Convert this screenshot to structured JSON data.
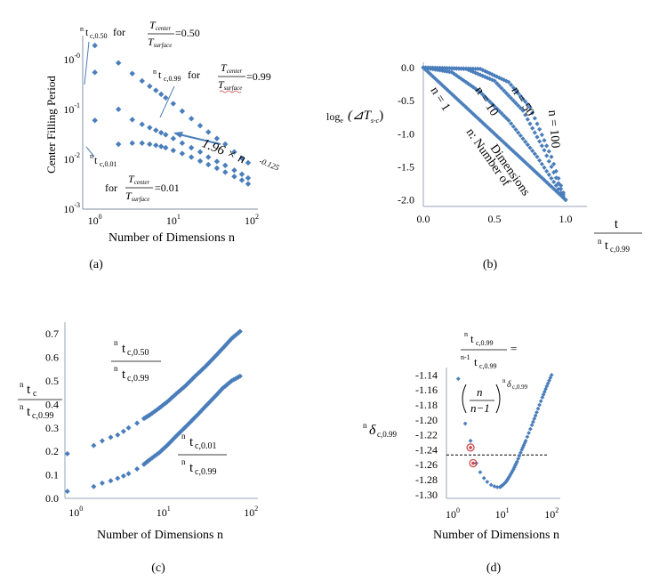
{
  "chart_data": [
    {
      "type": "scatter",
      "panel_label": "(a)",
      "xlabel": "Number of Dimensions n",
      "ylabel": "Center Filling Period",
      "xscale": "log",
      "yscale": "log",
      "xlim": [
        0.7,
        120
      ],
      "ylim": [
        0.001,
        3
      ],
      "x_ticks": [
        "10^0",
        "10^1",
        "10^2"
      ],
      "y_ticks": [
        "10^-3",
        "10^-2",
        "10^-1",
        "10^-0"
      ],
      "series": [
        {
          "x": [
            1,
            2,
            3,
            4,
            5,
            6,
            7,
            8,
            10,
            13,
            17,
            22,
            28,
            36,
            46,
            60,
            75,
            90
          ],
          "y": [
            1.9,
            0.85,
            0.52,
            0.37,
            0.29,
            0.24,
            0.2,
            0.17,
            0.13,
            0.092,
            0.065,
            0.047,
            0.035,
            0.026,
            0.02,
            0.014,
            0.0105,
            0.0085
          ]
        },
        {
          "x": [
            1,
            2,
            3,
            4,
            5,
            6,
            7,
            8,
            10,
            13,
            17,
            22,
            28,
            36,
            46,
            60,
            75,
            90
          ],
          "y": [
            0.55,
            0.1,
            0.062,
            0.05,
            0.043,
            0.038,
            0.034,
            0.031,
            0.026,
            0.021,
            0.017,
            0.014,
            0.011,
            0.009,
            0.0075,
            0.006,
            0.005,
            0.0042
          ]
        },
        {
          "x": [
            1,
            2,
            3,
            4,
            5,
            6,
            7,
            8,
            10,
            13,
            17,
            22,
            28,
            36,
            46,
            60,
            75,
            90
          ],
          "y": [
            0.06,
            0.02,
            0.021,
            0.021,
            0.02,
            0.019,
            0.018,
            0.017,
            0.015,
            0.013,
            0.011,
            0.0092,
            0.0078,
            0.0066,
            0.0055,
            0.0045,
            0.0038,
            0.0032
          ]
        }
      ],
      "annotations": {
        "top_label_prefix": "n",
        "top_label_sub": "c,0.50",
        "top_label_for": "for",
        "t_center": "T",
        "t_center_sub": "center",
        "t_surface": "T",
        "t_surface_sub": "surface",
        "val_050": "=0.50",
        "val_099": "=0.99",
        "val_001": "=0.01",
        "mid_label_sub": "c,0.99",
        "low_label_sub": "c,0.01",
        "formula_coef": "1.96 × n",
        "formula_exp": "-0.125"
      }
    },
    {
      "type": "line",
      "panel_label": "(b)",
      "xlabel": "t",
      "xlabel_denom_prefix": "n",
      "xlabel_denom": "t",
      "xlabel_denom_sub": "c,0.99",
      "ylabel": "log",
      "ylabel_sub": "e",
      "ylabel_arg": "(⊿T",
      "ylabel_arg_sub": "s-c",
      "ylabel_close": ")",
      "xlim": [
        0,
        1.15
      ],
      "ylim": [
        -2.1,
        0.08
      ],
      "x_ticks": [
        "0.0",
        "0.5",
        "1.0"
      ],
      "y_ticks": [
        "0.0",
        "-0.5",
        "-1.0",
        "-1.5",
        "-2.0"
      ],
      "series": [
        {
          "name": "n = 1",
          "x": [
            0,
            1
          ],
          "y": [
            0,
            -2.0
          ]
        },
        {
          "name": "n = 10",
          "x": [
            0,
            0.2,
            0.4,
            0.6,
            0.8,
            1.0
          ],
          "y": [
            0,
            -0.07,
            -0.37,
            -0.8,
            -1.35,
            -2.0
          ]
        },
        {
          "name": "n = 50",
          "x": [
            0,
            0.3,
            0.5,
            0.7,
            0.85,
            1.0
          ],
          "y": [
            0,
            -0.02,
            -0.2,
            -0.65,
            -1.25,
            -2.0
          ]
        },
        {
          "name": "n = 100",
          "x": [
            0,
            0.4,
            0.6,
            0.75,
            0.9,
            1.0
          ],
          "y": [
            0,
            -0.02,
            -0.22,
            -0.6,
            -1.35,
            -2.0
          ]
        }
      ],
      "annotations": {
        "n_note": "n: Number of",
        "n_note_2": "Dimensions"
      }
    },
    {
      "type": "scatter",
      "panel_label": "(c)",
      "xlabel": "Number of Dimensions n",
      "ylabel_prefix": "n",
      "ylabel_num": "t",
      "ylabel_num_sub": "c",
      "ylabel_den": "t",
      "ylabel_den_sub": "c,0.99",
      "xscale": "log",
      "xlim": [
        0.75,
        120
      ],
      "ylim": [
        0,
        0.75
      ],
      "x_ticks": [
        "10^0",
        "10^1",
        "10^2"
      ],
      "y_ticks": [
        "0.0",
        "0.1",
        "0.2",
        "0.3",
        "0.4",
        "0.5",
        "0.6",
        "0.7"
      ],
      "series": [
        {
          "label_num": "t",
          "label_num_sub": "c,0.50",
          "label_den": "t",
          "label_den_sub": "c,0.99",
          "x": [
            0.8,
            1.6,
            2,
            2.5,
            3,
            3.5,
            4,
            5,
            6,
            7,
            9,
            11,
            14,
            18,
            23,
            30,
            38,
            48,
            60,
            75
          ],
          "y": [
            0.19,
            0.225,
            0.245,
            0.26,
            0.27,
            0.285,
            0.3,
            0.32,
            0.34,
            0.355,
            0.385,
            0.41,
            0.445,
            0.48,
            0.52,
            0.56,
            0.6,
            0.64,
            0.68,
            0.71
          ]
        },
        {
          "label_num": "t",
          "label_num_sub": "c,0.01",
          "label_den": "t",
          "label_den_sub": "c,0.99",
          "x": [
            0.8,
            1.6,
            2,
            2.5,
            3,
            3.5,
            4,
            5,
            6,
            7,
            9,
            11,
            14,
            18,
            23,
            30,
            38,
            48,
            60,
            75
          ],
          "y": [
            0.03,
            0.05,
            0.065,
            0.075,
            0.085,
            0.095,
            0.105,
            0.125,
            0.145,
            0.165,
            0.195,
            0.225,
            0.265,
            0.305,
            0.345,
            0.39,
            0.43,
            0.47,
            0.5,
            0.52
          ]
        }
      ]
    },
    {
      "type": "scatter",
      "panel_label": "(d)",
      "xlabel": "Number of Dimensions n",
      "ylabel_prefix": "n",
      "ylabel": "δ",
      "ylabel_sub": "c,0.99",
      "xscale": "log",
      "xlim": [
        0.75,
        150
      ],
      "ylim": [
        -1.305,
        -1.13
      ],
      "x_ticks": [
        "10^0",
        "10^1",
        "10^2"
      ],
      "y_ticks": [
        "-1.14",
        "-1.16",
        "-1.18",
        "-1.20",
        "-1.22",
        "-1.24",
        "-1.26",
        "-1.28",
        "-1.30"
      ],
      "reference_line_y": -1.247,
      "highlighted_points": [
        {
          "x": 2.3,
          "y": -1.237
        },
        {
          "x": 2.6,
          "y": -1.258
        }
      ],
      "series": [
        {
          "x": [
            1.3,
            1.8,
            2.3,
            3,
            3.6,
            4.3,
            5,
            6,
            7,
            8,
            9,
            10,
            12,
            14,
            17,
            20,
            25,
            30,
            40,
            50,
            65,
            80,
            100
          ],
          "y": [
            -1.145,
            -1.205,
            -1.228,
            -1.258,
            -1.27,
            -1.278,
            -1.283,
            -1.287,
            -1.289,
            -1.29,
            -1.29,
            -1.288,
            -1.283,
            -1.276,
            -1.266,
            -1.256,
            -1.24,
            -1.228,
            -1.207,
            -1.19,
            -1.17,
            -1.155,
            -1.14
          ]
        }
      ],
      "annotations": {
        "eq_num_prefix": "n",
        "eq_num": "t",
        "eq_num_sub": "c,0.99",
        "eq_den_prefix": "n-1",
        "eq_den": "t",
        "eq_den_sub": "c,0.99",
        "eq_sign": "=",
        "frac_num": "n",
        "frac_den": "n−1",
        "exp_prefix": "n",
        "exp_delta": "δ",
        "exp_sub": "c,0.99"
      }
    }
  ],
  "colors": {
    "series": "#4a7ebb",
    "axis": "#9aa4b4",
    "highlight": "#d04040"
  }
}
